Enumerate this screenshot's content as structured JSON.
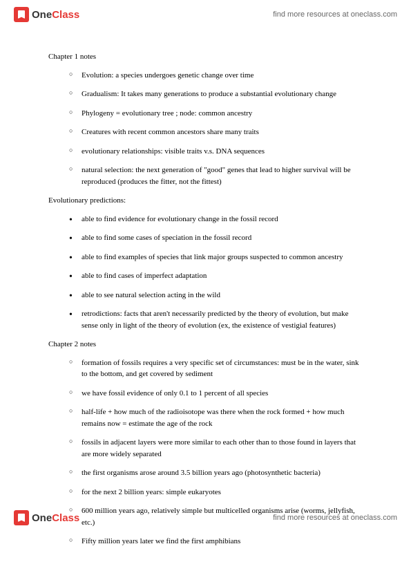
{
  "header": {
    "logo_one": "One",
    "logo_class": "Class",
    "link": "find more resources at oneclass.com"
  },
  "chapter1": {
    "heading": "Chapter 1 notes",
    "items": [
      "Evolution: a species undergoes genetic change over time",
      "Gradualism: It takes many generations to produce a substantial evolutionary change",
      "Phylogeny = evolutionary tree ; node: common ancestry",
      "Creatures with recent common ancestors share many traits",
      "evolutionary relationships: visible traits v.s. DNA sequences",
      "natural selection: the next generation of \"good\" genes that lead to higher survival will be reproduced (produces the fitter, not the fittest)"
    ]
  },
  "predictions": {
    "heading": "Evolutionary predictions:",
    "items": [
      "able to find evidence for evolutionary change in the fossil record",
      "able to find some cases of speciation in the fossil record",
      "able to find examples of species that link major groups suspected to common ancestry",
      "able to find cases of imperfect adaptation",
      "able to see natural selection acting in the wild",
      "retrodictions: facts that aren't necessarily predicted by the theory of evolution, but make sense only in light of the theory of evolution (ex, the existence of vestigial features)"
    ]
  },
  "chapter2": {
    "heading": "Chapter 2 notes",
    "items": [
      "formation of fossils requires a very specific set of circumstances: must be in the water, sink to the bottom, and get covered by sediment",
      "we have fossil evidence of only 0.1 to 1 percent of all species",
      "half-life + how much of the radioisotope was there when the rock formed + how much remains now = estimate the age of the rock",
      "fossils in adjacent layers were more similar to each other than to those found in layers that are more widely separated",
      "the first organisms arose around 3.5 billion years ago (photosynthetic bacteria)",
      "for the next 2 billion years: simple eukaryotes",
      "600 million years ago, relatively simple but multicelled organisms arise (worms, jellyfish, etc.)",
      "Fifty million years later we find the first amphibians"
    ]
  },
  "footer": {
    "logo_one": "One",
    "logo_class": "Class",
    "link": "find more resources at oneclass.com"
  }
}
